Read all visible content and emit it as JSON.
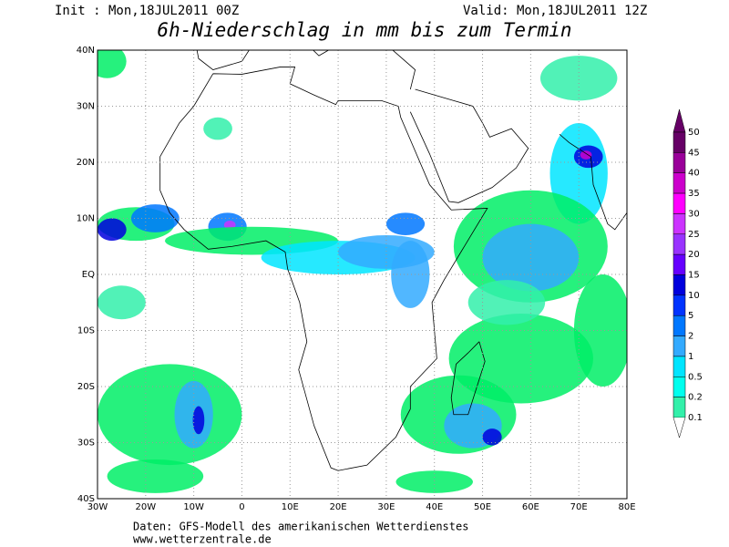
{
  "header": {
    "init": "Init : Mon,18JUL2011 00Z",
    "valid": "Valid: Mon,18JUL2011 12Z",
    "title": "6h-Niederschlag in mm bis zum Termin"
  },
  "map": {
    "lon_labels": [
      "30W",
      "20W",
      "10W",
      "0",
      "10E",
      "20E",
      "30E",
      "40E",
      "50E",
      "60E",
      "70E",
      "80E"
    ],
    "lat_labels": [
      "40N",
      "30N",
      "20N",
      "10N",
      "EQ",
      "10S",
      "20S",
      "30S",
      "40S"
    ]
  },
  "colorbar": {
    "labels": [
      "50",
      "45",
      "40",
      "35",
      "30",
      "25",
      "20",
      "15",
      "10",
      "5",
      "2",
      "1",
      "0.5",
      "0.2",
      "0.1"
    ],
    "colors": [
      "#660066",
      "#990099",
      "#cc00cc",
      "#ff00ff",
      "#cc33ff",
      "#9933ff",
      "#6600ff",
      "#0000dd",
      "#0033ff",
      "#0077ff",
      "#33aaff",
      "#00e5ff",
      "#00ffee",
      "#33f0aa",
      "#00ee66"
    ]
  },
  "footer": {
    "source": "Daten: GFS-Modell des amerikanischen Wetterdienstes",
    "url": "www.wetterzentrale.de"
  }
}
